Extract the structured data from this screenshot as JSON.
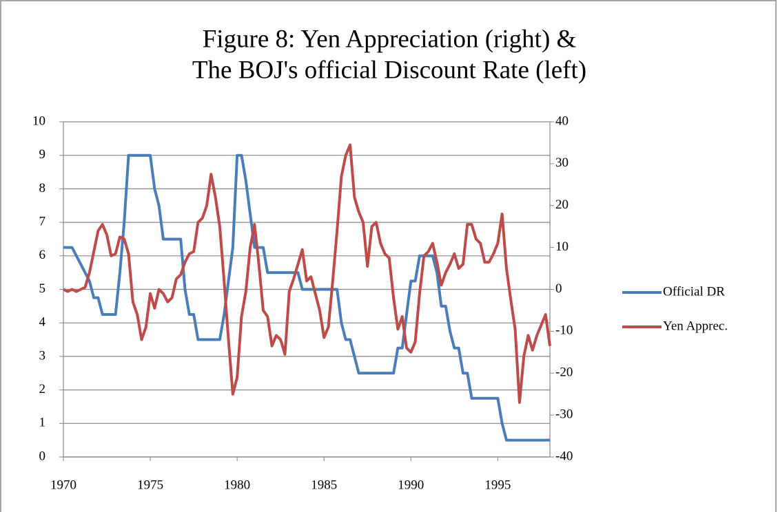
{
  "chart_data": {
    "type": "line",
    "title": [
      "Figure 8: Yen Appreciation (right) &",
      "The BOJ's official Discount Rate (left)"
    ],
    "x": [
      1970,
      1970.25,
      1970.5,
      1970.75,
      1971,
      1971.25,
      1971.5,
      1971.75,
      1972,
      1972.25,
      1972.5,
      1972.75,
      1973,
      1973.25,
      1973.5,
      1973.75,
      1974,
      1974.25,
      1974.5,
      1974.75,
      1975,
      1975.25,
      1975.5,
      1975.75,
      1976,
      1976.25,
      1976.5,
      1976.75,
      1977,
      1977.25,
      1977.5,
      1977.75,
      1978,
      1978.25,
      1978.5,
      1978.75,
      1979,
      1979.25,
      1979.5,
      1979.75,
      1980,
      1980.25,
      1980.5,
      1980.75,
      1981,
      1981.25,
      1981.5,
      1981.75,
      1982,
      1982.25,
      1982.5,
      1982.75,
      1983,
      1983.25,
      1983.5,
      1983.75,
      1984,
      1984.25,
      1984.5,
      1984.75,
      1985,
      1985.25,
      1985.5,
      1985.75,
      1986,
      1986.25,
      1986.5,
      1986.75,
      1987,
      1987.25,
      1987.5,
      1987.75,
      1988,
      1988.25,
      1988.5,
      1988.75,
      1989,
      1989.25,
      1989.5,
      1989.75,
      1990,
      1990.25,
      1990.5,
      1990.75,
      1991,
      1991.25,
      1991.5,
      1991.75,
      1992,
      1992.25,
      1992.5,
      1992.75,
      1993,
      1993.25,
      1993.5,
      1993.75,
      1994,
      1994.25,
      1994.5,
      1994.75,
      1995,
      1995.25,
      1995.5,
      1995.75,
      1996,
      1996.25,
      1996.5,
      1996.75,
      1997,
      1997.25,
      1997.5,
      1997.75,
      1998
    ],
    "series": [
      {
        "name": "Official DR",
        "color": "#4a7ebb",
        "axis": "y",
        "values": [
          6.25,
          6.25,
          6.25,
          6.0,
          5.75,
          5.5,
          5.25,
          4.75,
          4.75,
          4.25,
          4.25,
          4.25,
          4.25,
          5.5,
          7.0,
          9.0,
          9,
          9,
          9,
          9,
          9,
          8,
          7.5,
          6.5,
          6.5,
          6.5,
          6.5,
          6.5,
          5.0,
          4.25,
          4.25,
          3.5,
          3.5,
          3.5,
          3.5,
          3.5,
          3.5,
          4.25,
          5.25,
          6.25,
          9,
          9,
          8.25,
          7.25,
          6.25,
          6.25,
          6.25,
          5.5,
          5.5,
          5.5,
          5.5,
          5.5,
          5.5,
          5.5,
          5.5,
          5.0,
          5.0,
          5.0,
          5.0,
          5.0,
          5.0,
          5.0,
          5.0,
          5.0,
          4.0,
          3.5,
          3.5,
          3.0,
          2.5,
          2.5,
          2.5,
          2.5,
          2.5,
          2.5,
          2.5,
          2.5,
          2.5,
          3.25,
          3.25,
          4.25,
          5.25,
          5.25,
          6.0,
          6.0,
          6.0,
          6.0,
          5.5,
          4.5,
          4.5,
          3.75,
          3.25,
          3.25,
          2.5,
          2.5,
          1.75,
          1.75,
          1.75,
          1.75,
          1.75,
          1.75,
          1.75,
          1.0,
          0.5,
          0.5,
          0.5,
          0.5,
          0.5,
          0.5,
          0.5,
          0.5,
          0.5,
          0.5,
          0.5
        ]
      },
      {
        "name": "Yen Apprec.",
        "color": "#be4b48",
        "axis": "y2",
        "values": [
          0,
          -0.5,
          0,
          -0.5,
          0,
          0.5,
          4,
          9,
          14,
          15.5,
          13,
          8,
          8.5,
          12.5,
          12,
          8.5,
          -3,
          -6,
          -12,
          -9,
          -1,
          -4.5,
          0,
          -1,
          -3,
          -2,
          2.5,
          3.5,
          6.5,
          8.5,
          9,
          16,
          17,
          20,
          27.5,
          22,
          15,
          2,
          -12,
          -25,
          -21,
          -6.5,
          -0.5,
          10,
          15.5,
          6,
          -5,
          -6.5,
          -13.5,
          -11,
          -12,
          -15.5,
          -0.5,
          2.5,
          6,
          9.5,
          2,
          3,
          -1,
          -5,
          -11.5,
          -9,
          2,
          14,
          27,
          32,
          34.5,
          22,
          18.5,
          16,
          5.5,
          15,
          16,
          11,
          8.5,
          7.5,
          -2,
          -9.5,
          -6.5,
          -14,
          -15,
          -12.5,
          -1,
          8,
          9,
          11,
          6.5,
          1,
          4,
          6,
          8.5,
          5,
          6,
          15.5,
          15.5,
          12,
          11,
          6.5,
          6.5,
          8.5,
          11,
          18,
          5,
          -2.5,
          -9.5,
          -27,
          -16,
          -11,
          -14.5,
          -11,
          -8.5,
          -6,
          -13.5
        ]
      }
    ],
    "xlim": [
      1970,
      1998
    ],
    "xticks": [
      1970,
      1975,
      1980,
      1985,
      1990,
      1995
    ],
    "ylim": [
      0,
      10
    ],
    "yticks": [
      0,
      1,
      2,
      3,
      4,
      5,
      6,
      7,
      8,
      9,
      10
    ],
    "y2lim": [
      -40,
      40
    ],
    "y2ticks": [
      -40,
      -30,
      -20,
      -10,
      0,
      10,
      20,
      30,
      40
    ],
    "grid": true,
    "legend": "right"
  }
}
